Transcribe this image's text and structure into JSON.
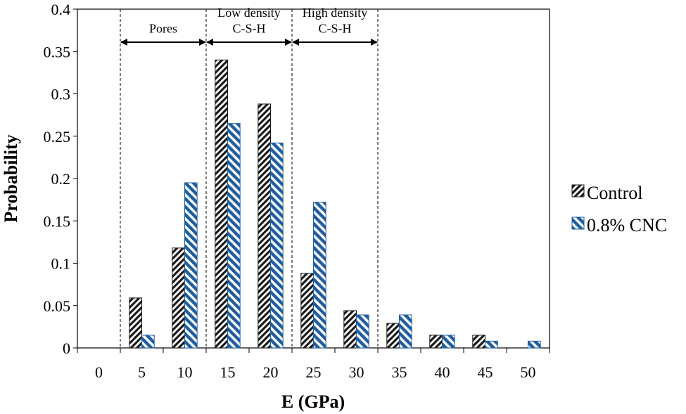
{
  "chart_data": {
    "type": "bar",
    "categories": [
      "0",
      "5",
      "10",
      "15",
      "20",
      "25",
      "30",
      "35",
      "40",
      "45",
      "50"
    ],
    "series": [
      {
        "name": "Control",
        "values": [
          0,
          0.059,
          0.118,
          0.34,
          0.288,
          0.088,
          0.044,
          0.029,
          0.015,
          0.015,
          0
        ]
      },
      {
        "name": "0.8% CNC",
        "values": [
          0,
          0.015,
          0.195,
          0.265,
          0.242,
          0.172,
          0.039,
          0.039,
          0.015,
          0.008,
          0.008
        ]
      }
    ],
    "xlabel": "E (GPa)",
    "ylabel": "Probability",
    "ylim": [
      0,
      0.4
    ],
    "yticks": [
      "0",
      "0.05",
      "0.1",
      "0.15",
      "0.2",
      "0.25",
      "0.3",
      "0.35",
      "0.4"
    ],
    "legend_position": "right",
    "regions": [
      {
        "lines": [
          "Pores"
        ],
        "from": 2.5,
        "to": 12.5
      },
      {
        "lines": [
          "Low density",
          "C-S-H"
        ],
        "from": 12.5,
        "to": 22.5
      },
      {
        "lines": [
          "High density",
          "C-S-H"
        ],
        "from": 22.5,
        "to": 32.5
      }
    ],
    "colors": {
      "control": "#1a1a1a",
      "cnc": "#1f5fa0"
    }
  }
}
